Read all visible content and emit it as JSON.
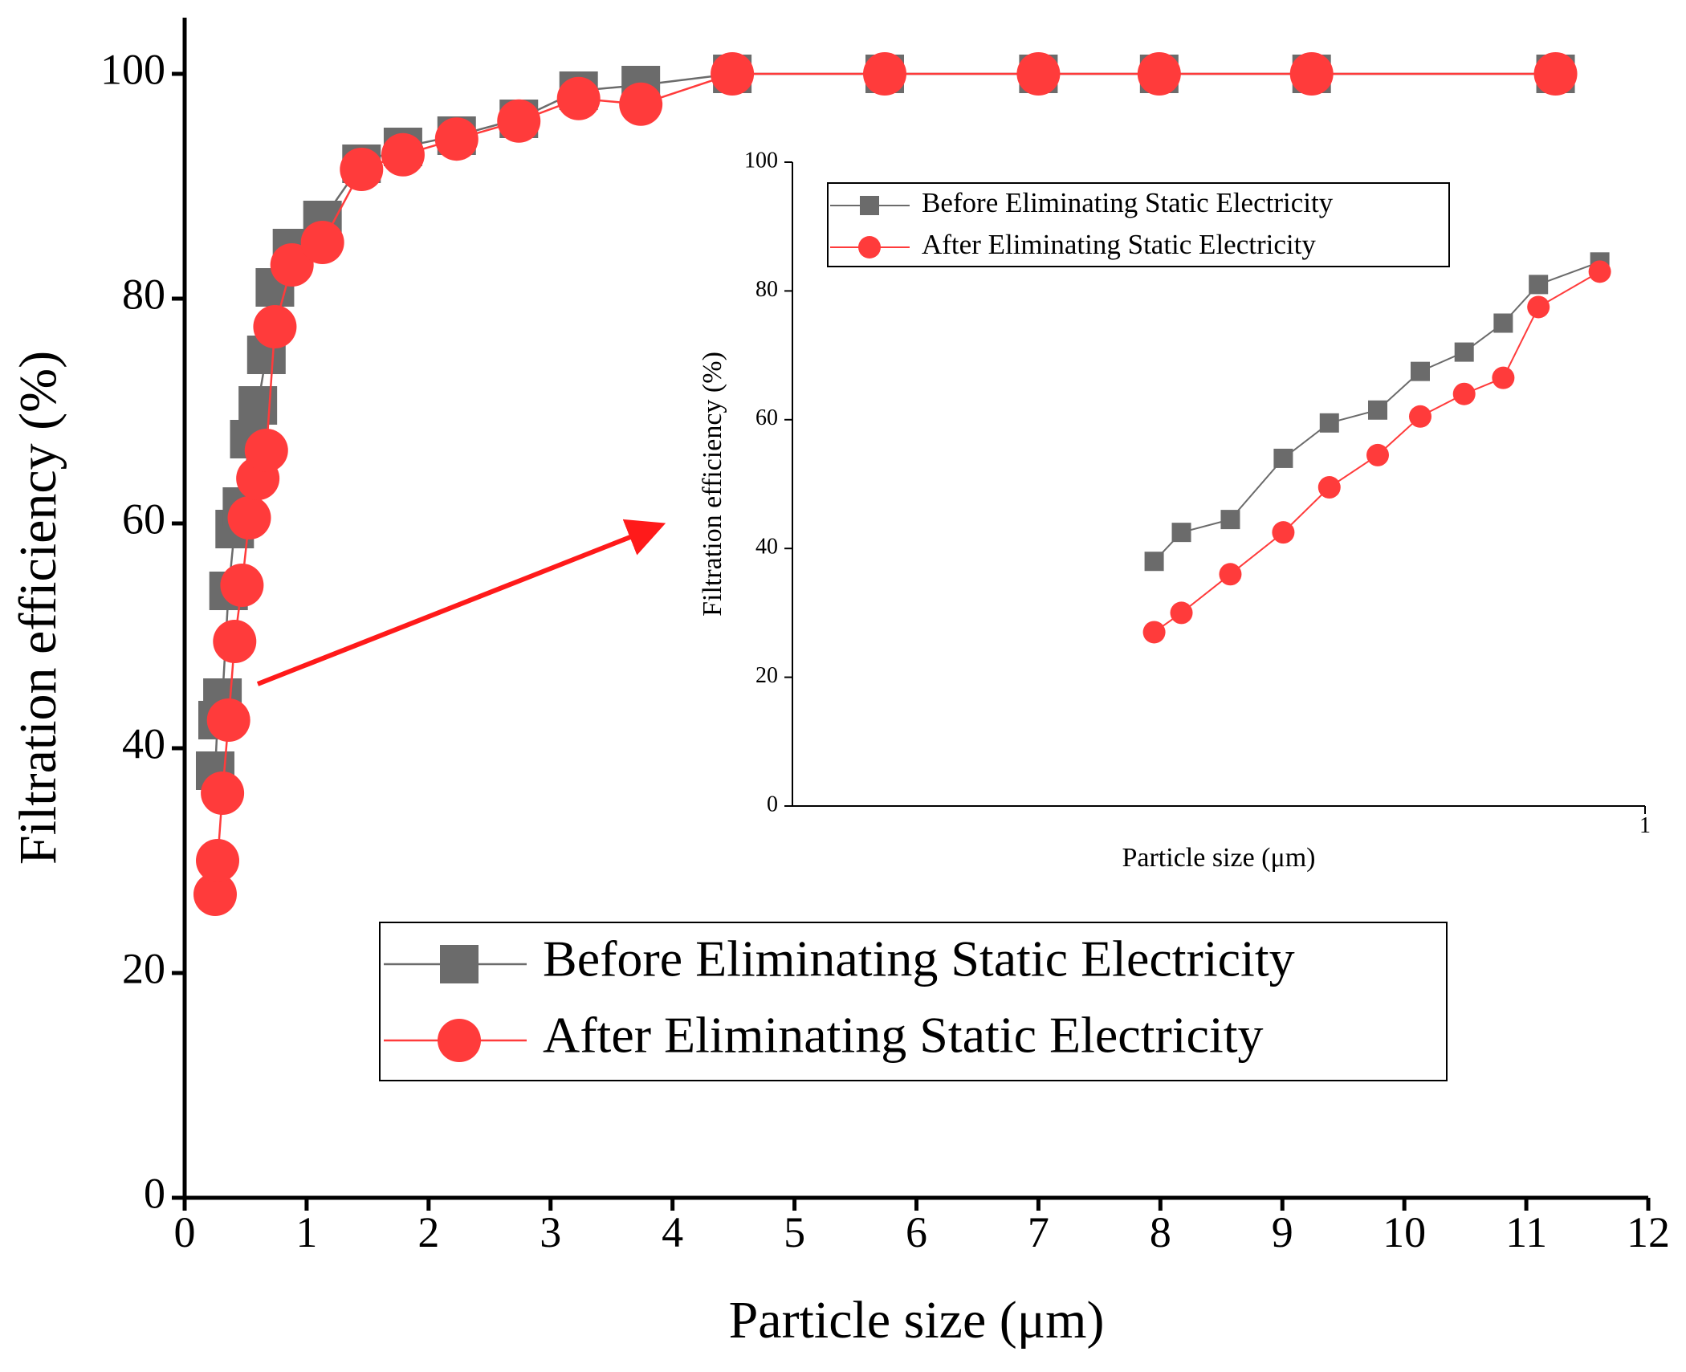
{
  "chart_data": [
    {
      "type": "line",
      "x": [
        0.25,
        0.27,
        0.31,
        0.36,
        0.41,
        0.47,
        0.53,
        0.6,
        0.67,
        0.74,
        0.88,
        1.13,
        1.45,
        1.79,
        2.23,
        2.74,
        3.23,
        3.74,
        4.49,
        5.74,
        7.0,
        7.99,
        9.24,
        11.24
      ],
      "series": [
        {
          "name": "Before Eliminating Static Electricity",
          "color": "#6b6b6b",
          "marker": "square",
          "values": [
            38,
            42.5,
            44.5,
            54,
            59.5,
            61.5,
            67.5,
            70.5,
            75,
            81,
            84.5,
            87,
            92,
            93.5,
            94.5,
            96,
            98.5,
            99,
            100,
            100,
            100,
            100,
            100,
            100
          ]
        },
        {
          "name": "After Eliminating Static Electricity",
          "color": "#ff3b3b",
          "marker": "circle",
          "values": [
            27,
            30,
            36,
            42.5,
            49.5,
            54.5,
            60.5,
            64,
            66.5,
            77.5,
            83,
            85,
            91.5,
            92.8,
            94.2,
            95.8,
            97.8,
            97.3,
            100,
            100,
            100,
            100,
            100,
            100
          ]
        }
      ],
      "x_label": "Particle size (μm)",
      "y_label": "Filtration efficiency (%)",
      "xlim": [
        0,
        12
      ],
      "xticks": [
        0,
        1,
        2,
        3,
        4,
        5,
        6,
        7,
        8,
        9,
        10,
        11,
        12
      ],
      "ylim": [
        0,
        105
      ],
      "yticks": [
        0,
        20,
        40,
        60,
        80,
        100
      ],
      "grid": false
    },
    {
      "type": "line",
      "xscale": "log",
      "x": [
        0.25,
        0.27,
        0.31,
        0.36,
        0.41,
        0.47,
        0.53,
        0.6,
        0.67,
        0.74,
        0.88
      ],
      "series": [
        {
          "name": "Before Eliminating Static Electricity",
          "color": "#6b6b6b",
          "marker": "square",
          "values": [
            38,
            42.5,
            44.5,
            54,
            59.5,
            61.5,
            67.5,
            70.5,
            75,
            81,
            84.5
          ]
        },
        {
          "name": "After Eliminating Static Electricity",
          "color": "#ff3b3b",
          "marker": "circle",
          "values": [
            27,
            30,
            36,
            42.5,
            49.5,
            54.5,
            60.5,
            64,
            66.5,
            77.5,
            83
          ]
        }
      ],
      "x_label": "Particle size (μm)",
      "y_label": "Filtration efficiency (%)",
      "xlim": [
        0.09,
        1
      ],
      "xticks": [
        1
      ],
      "ylim": [
        0,
        100
      ],
      "yticks": [
        0,
        20,
        40,
        60,
        80,
        100
      ],
      "grid": false
    }
  ]
}
